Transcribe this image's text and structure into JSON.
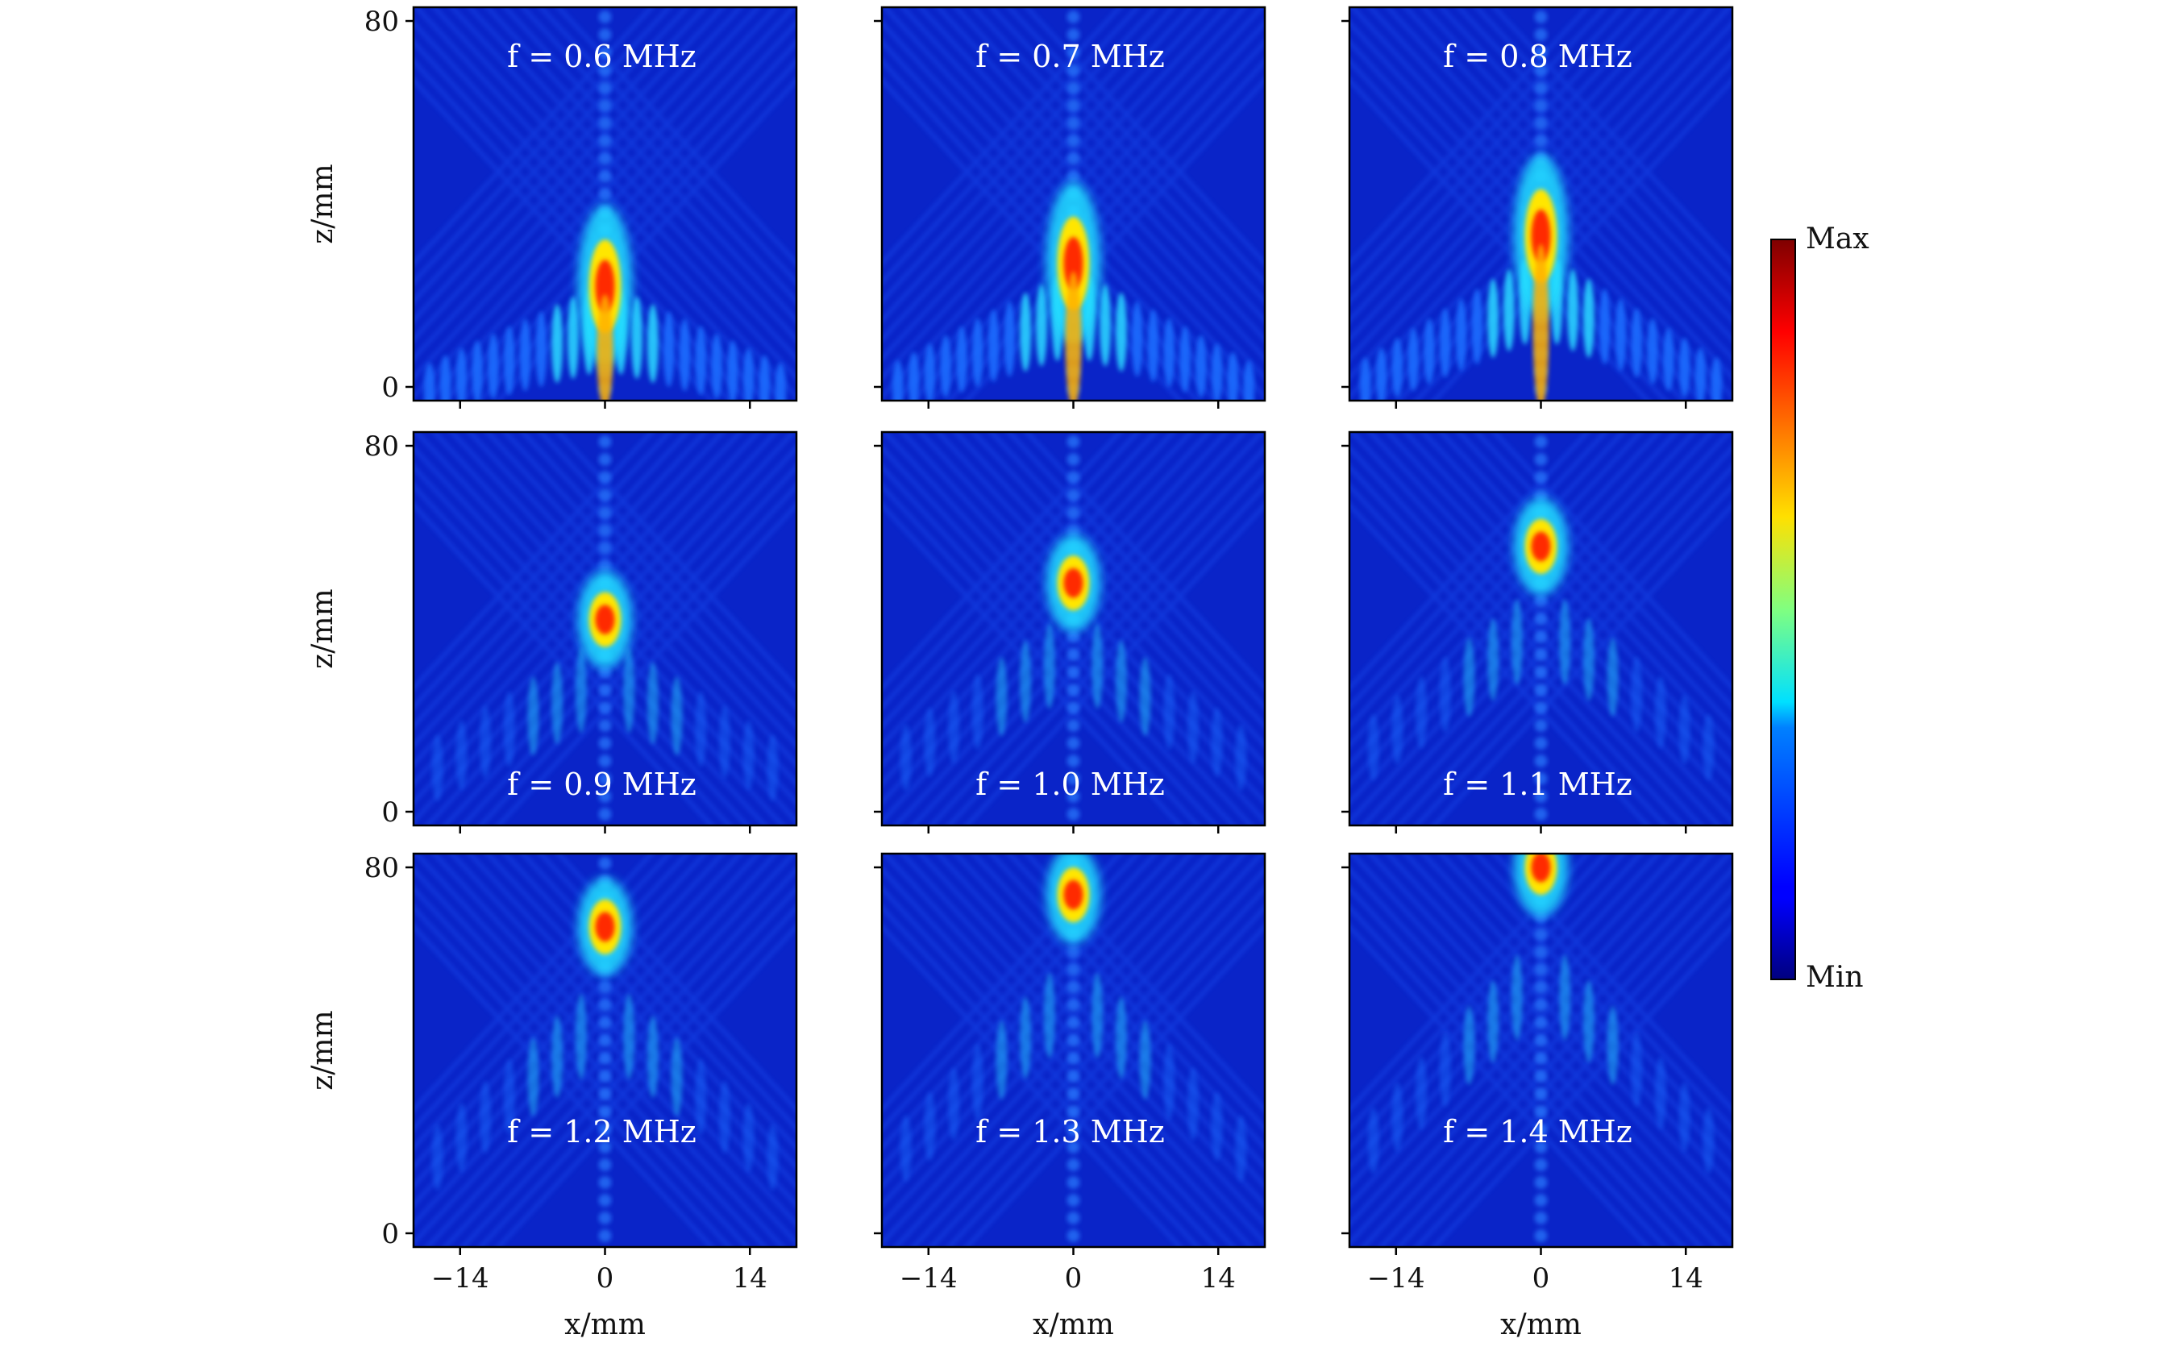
{
  "chart_data": {
    "type": "heatmap",
    "colormap": "jet",
    "colorbar": {
      "max_label": "Max",
      "min_label": "Min"
    },
    "xlabel": "x/mm",
    "ylabel": "z/mm",
    "x_ticks": [
      "−14",
      "0",
      "14"
    ],
    "x_tick_values": [
      -14,
      0,
      14
    ],
    "z_ticks": [
      "0",
      "80"
    ],
    "z_tick_values": [
      0,
      80
    ],
    "xlim": [
      -18.5,
      18.5
    ],
    "zlim": [
      -3,
      83
    ],
    "panels": [
      {
        "label": "f = 0.6 MHz",
        "frequency_mhz": 0.6,
        "focus_z_mm": 22,
        "focus_x_mm": 0,
        "label_position": "top"
      },
      {
        "label": "f = 0.7 MHz",
        "frequency_mhz": 0.7,
        "focus_z_mm": 27,
        "focus_x_mm": 0,
        "label_position": "top"
      },
      {
        "label": "f = 0.8 MHz",
        "frequency_mhz": 0.8,
        "focus_z_mm": 33,
        "focus_x_mm": 0,
        "label_position": "top"
      },
      {
        "label": "f = 0.9 MHz",
        "frequency_mhz": 0.9,
        "focus_z_mm": 42,
        "focus_x_mm": 0,
        "label_position": "bottom"
      },
      {
        "label": "f = 1.0 MHz",
        "frequency_mhz": 1.0,
        "focus_z_mm": 50,
        "focus_x_mm": 0,
        "label_position": "bottom"
      },
      {
        "label": "f = 1.1 MHz",
        "frequency_mhz": 1.1,
        "focus_z_mm": 58,
        "focus_x_mm": 0,
        "label_position": "bottom"
      },
      {
        "label": "f = 1.2 MHz",
        "frequency_mhz": 1.2,
        "focus_z_mm": 67,
        "focus_x_mm": 0,
        "label_position": "bottom"
      },
      {
        "label": "f = 1.3 MHz",
        "frequency_mhz": 1.3,
        "focus_z_mm": 74,
        "focus_x_mm": 0,
        "label_position": "bottom"
      },
      {
        "label": "f = 1.4 MHz",
        "frequency_mhz": 1.4,
        "focus_z_mm": 80,
        "focus_x_mm": 0,
        "label_position": "bottom"
      }
    ]
  }
}
